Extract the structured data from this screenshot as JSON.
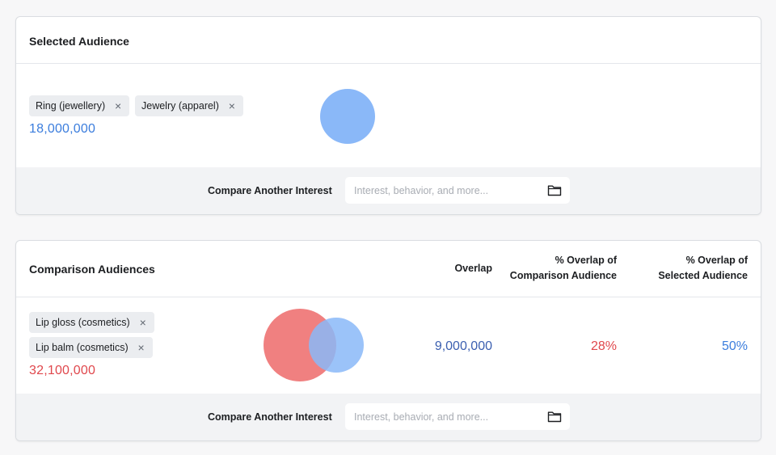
{
  "selected_audience": {
    "title": "Selected Audience",
    "chips": [
      {
        "label": "Ring (jewellery)",
        "remove": "×"
      },
      {
        "label": "Jewelry (apparel)",
        "remove": "×"
      }
    ],
    "size": "18,000,000",
    "size_color": "#3b7ddd",
    "circle_color": "#8ab8f8",
    "compare_label": "Compare Another Interest",
    "compare_placeholder": "Interest, behavior, and more...",
    "compare_icon": "folder-icon"
  },
  "comparison_audiences": {
    "title": "Comparison Audiences",
    "columns": {
      "overlap": "Overlap",
      "pct_comparison": [
        "% Overlap of",
        "Comparison Audience"
      ],
      "pct_selected": [
        "% Overlap of",
        "Selected Audience"
      ]
    },
    "chips": [
      {
        "label": "Lip gloss (cosmetics)",
        "remove": "×"
      },
      {
        "label": "Lip balm (cosmetics)",
        "remove": "×"
      }
    ],
    "size": "32,100,000",
    "size_color": "#e0484d",
    "circle_colors": {
      "comparison": "#f08080",
      "selected": "#8ab8f8"
    },
    "overlap_value": "9,000,000",
    "overlap_color": "#3b5fb0",
    "pct_comparison_value": "28%",
    "pct_comparison_color": "#e0484d",
    "pct_selected_value": "50%",
    "pct_selected_color": "#3b7ddd",
    "compare_label": "Compare Another Interest",
    "compare_placeholder": "Interest, behavior, and more...",
    "compare_icon": "folder-icon"
  }
}
